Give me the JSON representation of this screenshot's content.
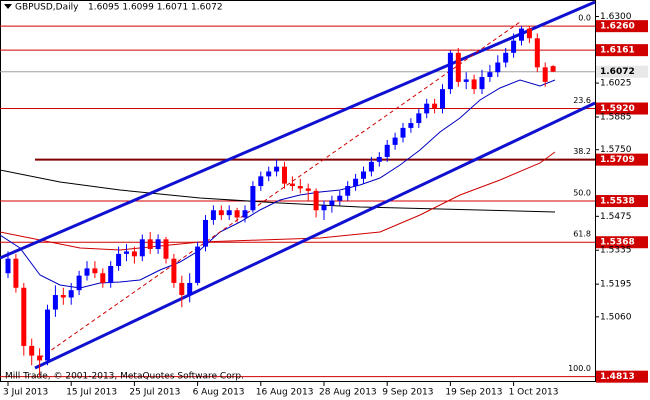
{
  "chart_data": {
    "type": "candlestick",
    "title": "GBPUSD,Daily",
    "subtitle": "1.6095 1.6099 1.6071 1.6072",
    "footer": "Mill Trade, © 2001-2013, MetaQuotes Software Corp.",
    "categories": [
      "3 Jul 2013",
      null,
      null,
      null,
      null,
      null,
      null,
      null,
      "15 Jul 2013",
      null,
      null,
      null,
      null,
      null,
      null,
      null,
      "25 Jul 2013",
      null,
      null,
      null,
      null,
      null,
      null,
      null,
      "6 Aug 2013",
      null,
      null,
      null,
      null,
      null,
      null,
      null,
      "16 Aug 2013",
      null,
      null,
      null,
      null,
      null,
      null,
      null,
      "28 Aug 2013",
      null,
      null,
      null,
      null,
      null,
      null,
      null,
      "9 Sep 2013",
      null,
      null,
      null,
      null,
      null,
      null,
      null,
      "19 Sep 2013",
      null,
      null,
      null,
      null,
      null,
      null,
      null,
      "1 Oct 2013",
      null,
      null,
      null,
      null,
      null
    ],
    "open": [
      1.524,
      1.53,
      1.518,
      1.494,
      1.49,
      1.488,
      1.509,
      1.515,
      1.514,
      1.517,
      1.523,
      1.526,
      1.524,
      1.52,
      1.527,
      1.532,
      1.533,
      1.531,
      1.538,
      1.534,
      1.538,
      1.53,
      1.52,
      1.515,
      1.52,
      1.535,
      1.546,
      1.55,
      1.548,
      1.55,
      1.547,
      1.55,
      1.56,
      1.564,
      1.566,
      1.568,
      1.561,
      1.56,
      1.559,
      1.558,
      1.55,
      1.552,
      1.554,
      1.556,
      1.56,
      1.563,
      1.566,
      1.57,
      1.572,
      1.577,
      1.58,
      1.584,
      1.586,
      1.59,
      1.594,
      1.592,
      1.6,
      1.615,
      1.603,
      1.604,
      1.6,
      1.605,
      1.607,
      1.611,
      1.615,
      1.62,
      1.625,
      1.621,
      1.609,
      1.6095
    ],
    "high": [
      1.533,
      1.532,
      1.52,
      1.497,
      1.493,
      1.511,
      1.519,
      1.518,
      1.52,
      1.525,
      1.529,
      1.529,
      1.526,
      1.529,
      1.535,
      1.536,
      1.535,
      1.54,
      1.541,
      1.54,
      1.539,
      1.532,
      1.523,
      1.524,
      1.537,
      1.548,
      1.552,
      1.552,
      1.552,
      1.551,
      1.552,
      1.562,
      1.566,
      1.568,
      1.571,
      1.57,
      1.564,
      1.563,
      1.561,
      1.559,
      1.554,
      1.556,
      1.558,
      1.562,
      1.565,
      1.568,
      1.572,
      1.574,
      1.579,
      1.582,
      1.586,
      1.588,
      1.592,
      1.596,
      1.596,
      1.602,
      1.616,
      1.617,
      1.607,
      1.606,
      1.608,
      1.61,
      1.614,
      1.617,
      1.623,
      1.626,
      1.626,
      1.623,
      1.611,
      1.6099
    ],
    "low": [
      1.522,
      1.516,
      1.49,
      1.486,
      1.4813,
      1.486,
      1.506,
      1.511,
      1.511,
      1.515,
      1.521,
      1.522,
      1.518,
      1.518,
      1.525,
      1.529,
      1.528,
      1.529,
      1.532,
      1.532,
      1.528,
      1.518,
      1.51,
      1.512,
      1.519,
      1.533,
      1.544,
      1.546,
      1.546,
      1.545,
      1.545,
      1.549,
      1.558,
      1.562,
      1.564,
      1.559,
      1.558,
      1.557,
      1.554,
      1.547,
      1.546,
      1.549,
      1.552,
      1.554,
      1.558,
      1.561,
      1.564,
      1.568,
      1.57,
      1.575,
      1.578,
      1.582,
      1.584,
      1.588,
      1.59,
      1.59,
      1.598,
      1.601,
      1.6,
      1.598,
      1.598,
      1.603,
      1.605,
      1.609,
      1.613,
      1.618,
      1.619,
      1.607,
      1.601,
      1.6071
    ],
    "close": [
      1.53,
      1.518,
      1.494,
      1.49,
      1.488,
      1.509,
      1.515,
      1.514,
      1.517,
      1.523,
      1.526,
      1.524,
      1.52,
      1.527,
      1.532,
      1.533,
      1.531,
      1.538,
      1.534,
      1.538,
      1.53,
      1.52,
      1.515,
      1.52,
      1.535,
      1.546,
      1.55,
      1.548,
      1.55,
      1.547,
      1.55,
      1.56,
      1.564,
      1.566,
      1.568,
      1.561,
      1.56,
      1.559,
      1.558,
      1.55,
      1.552,
      1.554,
      1.556,
      1.56,
      1.563,
      1.566,
      1.57,
      1.572,
      1.577,
      1.58,
      1.584,
      1.586,
      1.59,
      1.594,
      1.592,
      1.6,
      1.615,
      1.603,
      1.604,
      1.6,
      1.605,
      1.607,
      1.611,
      1.615,
      1.62,
      1.625,
      1.621,
      1.609,
      1.603,
      1.6072
    ],
    "up_color": "#0000ff",
    "down_color": "#ff0000",
    "ylim": [
      1.4791,
      1.6368
    ],
    "yticks": [
      {
        "value": 1.63,
        "label": "1.6300"
      },
      {
        "value": 1.6025,
        "label": "1.6025"
      },
      {
        "value": 1.5885,
        "label": "1.5885"
      },
      {
        "value": 1.575,
        "label": "1.5750"
      },
      {
        "value": 1.5475,
        "label": "1.5475"
      },
      {
        "value": 1.5335,
        "label": "1.5335"
      },
      {
        "value": 1.5195,
        "label": "1.5195"
      },
      {
        "value": 1.506,
        "label": "1.5060"
      }
    ],
    "levels": [
      {
        "value": 1.626,
        "label": "1.6260",
        "fib": "0.0"
      },
      {
        "value": 1.6161,
        "label": "1.6161"
      },
      {
        "value": 1.6072,
        "label": "1.6072",
        "current": true
      },
      {
        "value": 1.592,
        "label": "1.5920",
        "fib": "23.6"
      },
      {
        "value": 1.5709,
        "label": "1.5709",
        "fib": "38.2"
      },
      {
        "value": 1.5538,
        "label": "1.5538",
        "fib": "50.0"
      },
      {
        "value": 1.5368,
        "label": "1.5368",
        "fib": "61.8"
      },
      {
        "value": 1.4813,
        "label": "1.4813",
        "fib": "100.0"
      }
    ]
  }
}
